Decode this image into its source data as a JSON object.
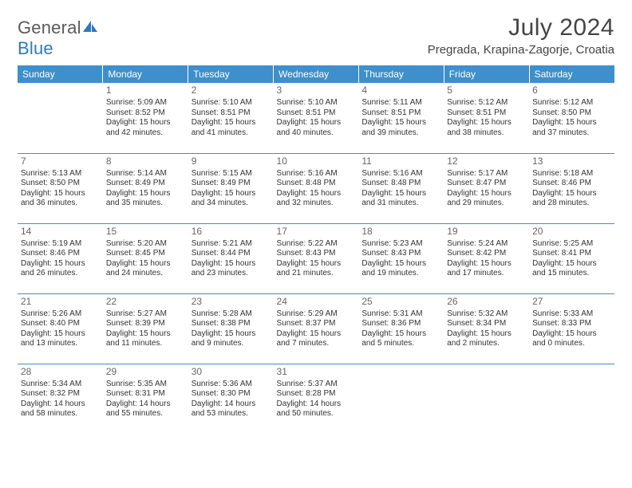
{
  "logo": {
    "word1": "General",
    "word2": "Blue"
  },
  "title": "July 2024",
  "location": "Pregrada, Krapina-Zagorje, Croatia",
  "colors": {
    "header_bg": "#3e8fcc",
    "header_text": "#ffffff",
    "border": "#3e8fcc",
    "logo_gray": "#5a5a5a",
    "logo_blue": "#2a7ac0",
    "body_text": "#333333",
    "daynum_text": "#666666",
    "page_bg": "#ffffff"
  },
  "typography": {
    "month_title_size_pt": 22,
    "location_size_pt": 11,
    "dayheader_size_pt": 9,
    "cell_size_pt": 7.5,
    "daynum_size_pt": 9
  },
  "day_headers": [
    "Sunday",
    "Monday",
    "Tuesday",
    "Wednesday",
    "Thursday",
    "Friday",
    "Saturday"
  ],
  "weeks": [
    [
      null,
      {
        "n": "1",
        "sr": "Sunrise: 5:09 AM",
        "ss": "Sunset: 8:52 PM",
        "dl": "Daylight: 15 hours and 42 minutes."
      },
      {
        "n": "2",
        "sr": "Sunrise: 5:10 AM",
        "ss": "Sunset: 8:51 PM",
        "dl": "Daylight: 15 hours and 41 minutes."
      },
      {
        "n": "3",
        "sr": "Sunrise: 5:10 AM",
        "ss": "Sunset: 8:51 PM",
        "dl": "Daylight: 15 hours and 40 minutes."
      },
      {
        "n": "4",
        "sr": "Sunrise: 5:11 AM",
        "ss": "Sunset: 8:51 PM",
        "dl": "Daylight: 15 hours and 39 minutes."
      },
      {
        "n": "5",
        "sr": "Sunrise: 5:12 AM",
        "ss": "Sunset: 8:51 PM",
        "dl": "Daylight: 15 hours and 38 minutes."
      },
      {
        "n": "6",
        "sr": "Sunrise: 5:12 AM",
        "ss": "Sunset: 8:50 PM",
        "dl": "Daylight: 15 hours and 37 minutes."
      }
    ],
    [
      {
        "n": "7",
        "sr": "Sunrise: 5:13 AM",
        "ss": "Sunset: 8:50 PM",
        "dl": "Daylight: 15 hours and 36 minutes."
      },
      {
        "n": "8",
        "sr": "Sunrise: 5:14 AM",
        "ss": "Sunset: 8:49 PM",
        "dl": "Daylight: 15 hours and 35 minutes."
      },
      {
        "n": "9",
        "sr": "Sunrise: 5:15 AM",
        "ss": "Sunset: 8:49 PM",
        "dl": "Daylight: 15 hours and 34 minutes."
      },
      {
        "n": "10",
        "sr": "Sunrise: 5:16 AM",
        "ss": "Sunset: 8:48 PM",
        "dl": "Daylight: 15 hours and 32 minutes."
      },
      {
        "n": "11",
        "sr": "Sunrise: 5:16 AM",
        "ss": "Sunset: 8:48 PM",
        "dl": "Daylight: 15 hours and 31 minutes."
      },
      {
        "n": "12",
        "sr": "Sunrise: 5:17 AM",
        "ss": "Sunset: 8:47 PM",
        "dl": "Daylight: 15 hours and 29 minutes."
      },
      {
        "n": "13",
        "sr": "Sunrise: 5:18 AM",
        "ss": "Sunset: 8:46 PM",
        "dl": "Daylight: 15 hours and 28 minutes."
      }
    ],
    [
      {
        "n": "14",
        "sr": "Sunrise: 5:19 AM",
        "ss": "Sunset: 8:46 PM",
        "dl": "Daylight: 15 hours and 26 minutes."
      },
      {
        "n": "15",
        "sr": "Sunrise: 5:20 AM",
        "ss": "Sunset: 8:45 PM",
        "dl": "Daylight: 15 hours and 24 minutes."
      },
      {
        "n": "16",
        "sr": "Sunrise: 5:21 AM",
        "ss": "Sunset: 8:44 PM",
        "dl": "Daylight: 15 hours and 23 minutes."
      },
      {
        "n": "17",
        "sr": "Sunrise: 5:22 AM",
        "ss": "Sunset: 8:43 PM",
        "dl": "Daylight: 15 hours and 21 minutes."
      },
      {
        "n": "18",
        "sr": "Sunrise: 5:23 AM",
        "ss": "Sunset: 8:43 PM",
        "dl": "Daylight: 15 hours and 19 minutes."
      },
      {
        "n": "19",
        "sr": "Sunrise: 5:24 AM",
        "ss": "Sunset: 8:42 PM",
        "dl": "Daylight: 15 hours and 17 minutes."
      },
      {
        "n": "20",
        "sr": "Sunrise: 5:25 AM",
        "ss": "Sunset: 8:41 PM",
        "dl": "Daylight: 15 hours and 15 minutes."
      }
    ],
    [
      {
        "n": "21",
        "sr": "Sunrise: 5:26 AM",
        "ss": "Sunset: 8:40 PM",
        "dl": "Daylight: 15 hours and 13 minutes."
      },
      {
        "n": "22",
        "sr": "Sunrise: 5:27 AM",
        "ss": "Sunset: 8:39 PM",
        "dl": "Daylight: 15 hours and 11 minutes."
      },
      {
        "n": "23",
        "sr": "Sunrise: 5:28 AM",
        "ss": "Sunset: 8:38 PM",
        "dl": "Daylight: 15 hours and 9 minutes."
      },
      {
        "n": "24",
        "sr": "Sunrise: 5:29 AM",
        "ss": "Sunset: 8:37 PM",
        "dl": "Daylight: 15 hours and 7 minutes."
      },
      {
        "n": "25",
        "sr": "Sunrise: 5:31 AM",
        "ss": "Sunset: 8:36 PM",
        "dl": "Daylight: 15 hours and 5 minutes."
      },
      {
        "n": "26",
        "sr": "Sunrise: 5:32 AM",
        "ss": "Sunset: 8:34 PM",
        "dl": "Daylight: 15 hours and 2 minutes."
      },
      {
        "n": "27",
        "sr": "Sunrise: 5:33 AM",
        "ss": "Sunset: 8:33 PM",
        "dl": "Daylight: 15 hours and 0 minutes."
      }
    ],
    [
      {
        "n": "28",
        "sr": "Sunrise: 5:34 AM",
        "ss": "Sunset: 8:32 PM",
        "dl": "Daylight: 14 hours and 58 minutes."
      },
      {
        "n": "29",
        "sr": "Sunrise: 5:35 AM",
        "ss": "Sunset: 8:31 PM",
        "dl": "Daylight: 14 hours and 55 minutes."
      },
      {
        "n": "30",
        "sr": "Sunrise: 5:36 AM",
        "ss": "Sunset: 8:30 PM",
        "dl": "Daylight: 14 hours and 53 minutes."
      },
      {
        "n": "31",
        "sr": "Sunrise: 5:37 AM",
        "ss": "Sunset: 8:28 PM",
        "dl": "Daylight: 14 hours and 50 minutes."
      },
      null,
      null,
      null
    ]
  ]
}
